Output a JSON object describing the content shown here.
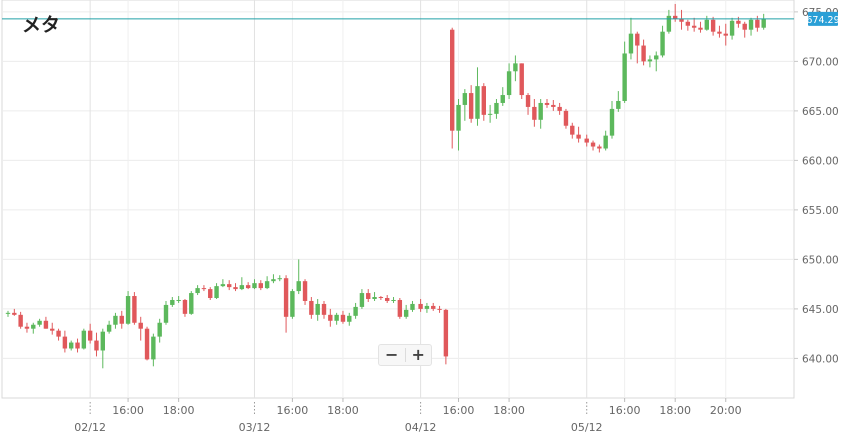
{
  "title": "メタ",
  "colors": {
    "up": "#5cb85c",
    "down": "#e0585b",
    "current_line": "#20a0a8",
    "price_tag": "#2a9fd6"
  },
  "zoom": {
    "minus_label": "−",
    "plus_label": "+"
  },
  "chart_data": {
    "type": "candlestick",
    "title": "メタ",
    "current_price": 674.29,
    "current_price_label": "674.29",
    "ylim": [
      636,
      676.2
    ],
    "y_ticks": [
      640,
      645,
      650,
      655,
      660,
      665,
      670,
      675
    ],
    "y_tick_labels": [
      "640.00",
      "645.00",
      "650.00",
      "655.00",
      "660.00",
      "665.00",
      "670.00",
      "675.00"
    ],
    "x_ticks": [
      {
        "i": 0,
        "label": "02/12",
        "major": true
      },
      {
        "i": 6,
        "label": "16:00",
        "major": false
      },
      {
        "i": 14,
        "label": "18:00",
        "major": false
      },
      {
        "i": 26,
        "label": "03/12",
        "major": true
      },
      {
        "i": 32,
        "label": "16:00",
        "major": false
      },
      {
        "i": 40,
        "label": "18:00",
        "major": false
      },
      {
        "i": 52,
        "label": "04/12",
        "major": true
      },
      {
        "i": 58,
        "label": "16:00",
        "major": false
      },
      {
        "i": 66,
        "label": "18:00",
        "major": false
      },
      {
        "i": 78,
        "label": "05/12",
        "major": true
      },
      {
        "i": 84,
        "label": "16:00",
        "major": false
      },
      {
        "i": 92,
        "label": "18:00",
        "major": false
      },
      {
        "i": 100,
        "label": "20:00",
        "major": false
      }
    ],
    "x_start_index": -13,
    "candles": [
      [
        644.5,
        644.8,
        644.2,
        644.6
      ],
      [
        644.6,
        645.0,
        644.3,
        644.4
      ],
      [
        644.4,
        644.7,
        643.0,
        643.2
      ],
      [
        643.2,
        643.6,
        642.6,
        643.0
      ],
      [
        643.0,
        643.6,
        642.5,
        643.4
      ],
      [
        643.4,
        644.0,
        643.2,
        643.8
      ],
      [
        643.8,
        644.2,
        643.0,
        643.0
      ],
      [
        643.0,
        643.6,
        642.4,
        642.8
      ],
      [
        642.8,
        643.0,
        641.8,
        642.2
      ],
      [
        642.2,
        642.8,
        640.6,
        641.0
      ],
      [
        641.0,
        641.8,
        640.8,
        641.6
      ],
      [
        641.6,
        642.0,
        640.6,
        641.0
      ],
      [
        641.0,
        643.0,
        640.9,
        642.8
      ],
      [
        642.8,
        643.5,
        641.5,
        641.8
      ],
      [
        641.8,
        642.6,
        640.2,
        640.8
      ],
      [
        640.8,
        643.0,
        639.0,
        642.7
      ],
      [
        642.7,
        643.8,
        642.5,
        643.4
      ],
      [
        643.4,
        644.6,
        643.0,
        644.3
      ],
      [
        644.3,
        644.8,
        643.0,
        643.5
      ],
      [
        643.5,
        646.8,
        643.4,
        646.3
      ],
      [
        646.3,
        646.7,
        643.4,
        643.6
      ],
      [
        643.6,
        644.2,
        641.8,
        643.0
      ],
      [
        643.0,
        643.2,
        639.8,
        639.9
      ],
      [
        639.9,
        642.5,
        639.2,
        642.2
      ],
      [
        642.2,
        644.0,
        641.6,
        643.6
      ],
      [
        643.6,
        645.8,
        643.4,
        645.4
      ],
      [
        645.4,
        646.2,
        645.2,
        645.9
      ],
      [
        645.9,
        646.3,
        645.6,
        645.9
      ],
      [
        645.9,
        646.0,
        644.2,
        644.5
      ],
      [
        644.5,
        646.8,
        644.4,
        646.6
      ],
      [
        646.6,
        647.4,
        646.4,
        647.1
      ],
      [
        647.1,
        647.4,
        646.8,
        647.0
      ],
      [
        647.0,
        647.2,
        645.9,
        646.1
      ],
      [
        646.1,
        647.6,
        646.0,
        647.3
      ],
      [
        647.3,
        648.0,
        647.2,
        647.5
      ],
      [
        647.5,
        647.9,
        646.9,
        647.2
      ],
      [
        647.2,
        647.6,
        646.8,
        647.0
      ],
      [
        647.0,
        648.2,
        646.9,
        647.4
      ],
      [
        647.4,
        647.7,
        647.0,
        647.1
      ],
      [
        647.1,
        648.0,
        647.0,
        647.6
      ],
      [
        647.6,
        647.9,
        646.9,
        647.1
      ],
      [
        647.1,
        648.3,
        647.0,
        647.8
      ],
      [
        647.8,
        648.5,
        647.6,
        648.0
      ],
      [
        648.0,
        648.4,
        647.8,
        648.1
      ],
      [
        648.1,
        648.4,
        642.6,
        644.2
      ],
      [
        644.2,
        647.0,
        644.0,
        646.8
      ],
      [
        646.8,
        650.0,
        646.5,
        647.8
      ],
      [
        647.8,
        648.0,
        645.4,
        645.8
      ],
      [
        645.8,
        646.2,
        644.0,
        644.4
      ],
      [
        644.4,
        646.0,
        643.8,
        645.5
      ],
      [
        645.5,
        645.8,
        644.0,
        644.4
      ],
      [
        644.4,
        645.0,
        643.2,
        643.8
      ],
      [
        643.8,
        644.6,
        643.4,
        644.4
      ],
      [
        644.4,
        644.8,
        643.5,
        643.7
      ],
      [
        643.7,
        644.6,
        643.3,
        644.3
      ],
      [
        644.3,
        645.6,
        644.0,
        645.2
      ],
      [
        645.2,
        647.0,
        645.0,
        646.6
      ],
      [
        646.6,
        647.0,
        645.7,
        646.0
      ],
      [
        646.0,
        646.7,
        645.8,
        646.2
      ],
      [
        646.2,
        646.3,
        645.9,
        646.1
      ],
      [
        646.1,
        646.4,
        645.6,
        645.8
      ],
      [
        645.8,
        646.2,
        645.6,
        645.9
      ],
      [
        645.9,
        646.1,
        644.0,
        644.2
      ],
      [
        644.2,
        645.4,
        644.0,
        644.9
      ],
      [
        644.9,
        645.8,
        644.7,
        645.5
      ],
      [
        645.5,
        646.0,
        644.7,
        645.0
      ],
      [
        645.0,
        645.6,
        644.6,
        645.3
      ],
      [
        645.3,
        645.6,
        644.8,
        645.0
      ],
      [
        645.0,
        645.3,
        644.6,
        644.9
      ],
      [
        644.9,
        645.0,
        639.4,
        640.2
      ],
      [
        673.2,
        673.4,
        661.2,
        663.0
      ],
      [
        663.0,
        666.2,
        661.0,
        665.6
      ],
      [
        665.6,
        667.2,
        664.0,
        666.8
      ],
      [
        666.8,
        667.6,
        663.8,
        664.2
      ],
      [
        664.2,
        669.4,
        663.5,
        667.5
      ],
      [
        667.5,
        667.8,
        664.0,
        664.6
      ],
      [
        664.6,
        665.6,
        663.8,
        664.7
      ],
      [
        664.7,
        666.2,
        664.2,
        665.8
      ],
      [
        665.8,
        667.4,
        665.5,
        666.6
      ],
      [
        666.6,
        669.8,
        666.2,
        669.0
      ],
      [
        669.0,
        670.6,
        668.0,
        669.8
      ],
      [
        669.8,
        669.8,
        666.2,
        666.6
      ],
      [
        666.6,
        666.8,
        664.6,
        665.4
      ],
      [
        665.4,
        666.2,
        663.4,
        664.1
      ],
      [
        664.1,
        666.2,
        663.2,
        665.8
      ],
      [
        665.8,
        666.2,
        665.3,
        665.6
      ],
      [
        665.6,
        666.1,
        665.0,
        665.4
      ],
      [
        665.4,
        665.8,
        664.6,
        665.0
      ],
      [
        665.0,
        665.2,
        663.2,
        663.5
      ],
      [
        663.5,
        663.8,
        662.2,
        662.6
      ],
      [
        662.6,
        663.4,
        661.8,
        662.2
      ],
      [
        662.2,
        662.6,
        661.4,
        661.8
      ],
      [
        661.8,
        662.0,
        661.0,
        661.4
      ],
      [
        661.4,
        661.6,
        660.8,
        661.2
      ],
      [
        661.2,
        663.0,
        661.0,
        662.5
      ],
      [
        662.5,
        666.0,
        662.2,
        665.2
      ],
      [
        665.2,
        667.0,
        664.9,
        666.0
      ],
      [
        666.0,
        672.0,
        665.8,
        670.8
      ],
      [
        670.8,
        674.4,
        670.2,
        672.8
      ],
      [
        672.8,
        673.0,
        669.8,
        671.6
      ],
      [
        671.6,
        672.2,
        669.6,
        670.0
      ],
      [
        670.0,
        670.6,
        669.4,
        670.2
      ],
      [
        670.2,
        671.0,
        669.0,
        670.6
      ],
      [
        670.6,
        673.6,
        670.4,
        673.0
      ],
      [
        673.0,
        675.2,
        672.8,
        674.6
      ],
      [
        674.6,
        675.8,
        674.0,
        674.3
      ],
      [
        674.3,
        675.2,
        673.2,
        674.0
      ],
      [
        674.0,
        674.2,
        673.1,
        673.6
      ],
      [
        673.6,
        674.4,
        673.0,
        673.4
      ],
      [
        673.4,
        674.0,
        672.9,
        673.2
      ],
      [
        673.2,
        674.6,
        673.1,
        674.2
      ],
      [
        674.2,
        674.5,
        672.6,
        673.0
      ],
      [
        673.0,
        673.6,
        672.4,
        672.8
      ],
      [
        672.8,
        673.8,
        671.6,
        672.6
      ],
      [
        672.6,
        674.4,
        672.2,
        674.1
      ],
      [
        674.1,
        674.5,
        673.4,
        673.8
      ],
      [
        673.8,
        674.0,
        672.4,
        673.2
      ],
      [
        673.2,
        674.4,
        672.6,
        674.2
      ],
      [
        674.2,
        674.6,
        673.0,
        673.4
      ],
      [
        673.4,
        674.8,
        673.2,
        674.3
      ]
    ]
  }
}
